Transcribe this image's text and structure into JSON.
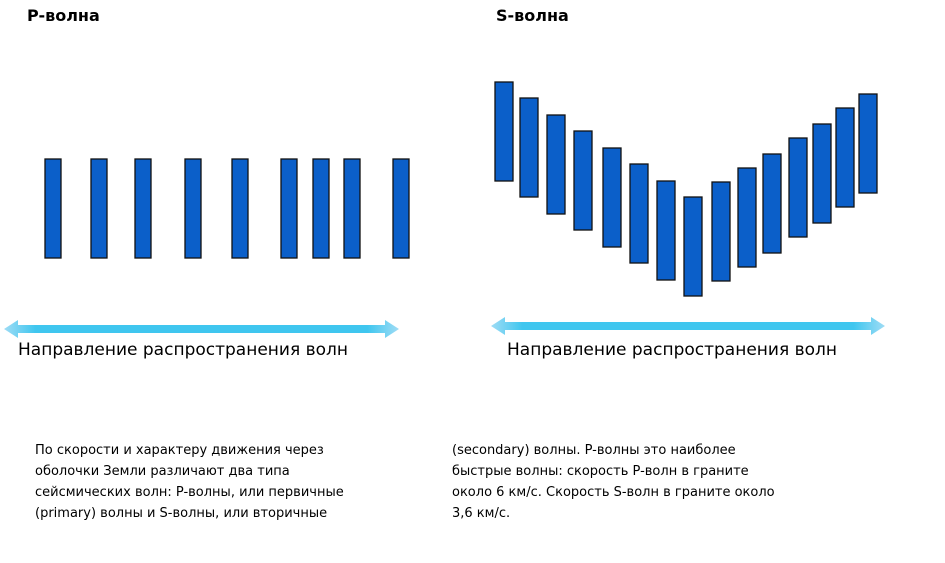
{
  "p_wave": {
    "title": "P-волна",
    "bars": 9,
    "bar_color": "#0b5fc9"
  },
  "s_wave": {
    "title": "S-волна",
    "bars": 15,
    "bar_color": "#0b5fc9"
  },
  "arrow_color": "#3fc6ef",
  "propagation_label": "Направление распространения волн",
  "text": {
    "left_lines": "По скорости и характеру движения через\nоболочки Земли различают два типа\nсейсмических волн: P-волны, или первичные\n(primary) волны и S-волны, или вторичные",
    "right_lines": "(secondary) волны. P-волны это наиболее\nбыстрые волны: скорость P-волн в граните\nоколо 6 км/с. Скорость S-волн в граните около\n3,6 км/с."
  }
}
